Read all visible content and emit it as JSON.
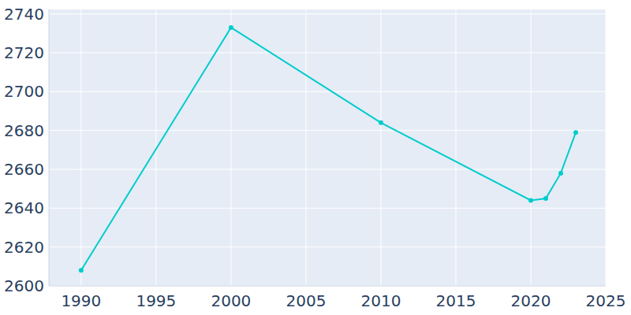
{
  "chart_data": {
    "type": "line",
    "x": [
      1990,
      2000,
      2010,
      2020,
      2021,
      2022,
      2023
    ],
    "values": [
      2608,
      2733,
      2684,
      2644,
      2645,
      2658,
      2679
    ],
    "color": "#00cccc",
    "marker": "circle",
    "line_style": "solid",
    "xlim": [
      1987.85,
      2025
    ],
    "xticks": [
      1990,
      1995,
      2000,
      2005,
      2010,
      2015,
      2020,
      2025
    ],
    "ylim": [
      2600,
      2742.3
    ],
    "yticks": [
      2600,
      2620,
      2640,
      2660,
      2680,
      2700,
      2720,
      2740
    ],
    "grid": true
  }
}
